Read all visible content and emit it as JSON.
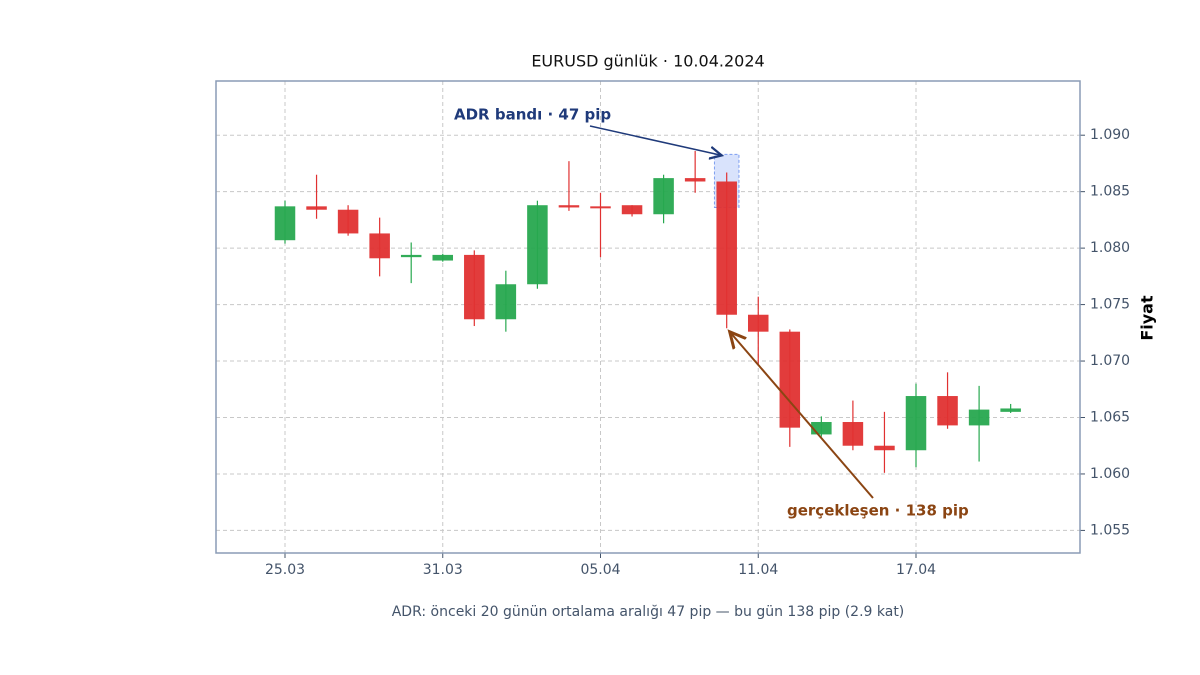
{
  "chart_data": {
    "type": "candlestick",
    "title": "EURUSD günlük · 10.04.2024",
    "y_label": "Fiyat",
    "caption": "ADR: önceki 20 günün ortalama aralığı 47 pip — bu gün 138 pip (2.9 kat)",
    "categories": [
      "25.03",
      null,
      null,
      null,
      null,
      "31.03",
      null,
      null,
      null,
      null,
      "05.04",
      null,
      null,
      null,
      null,
      "11.04",
      null,
      null,
      null,
      null,
      "17.04",
      null,
      null,
      null
    ],
    "open": [
      1.0807,
      1.0837,
      1.0834,
      1.0813,
      1.0792,
      1.0789,
      1.0794,
      1.0737,
      1.0768,
      1.0838,
      1.0837,
      1.0838,
      1.083,
      1.0862,
      1.0859,
      1.0741,
      1.0726,
      1.0635,
      1.0646,
      1.0625,
      1.0621,
      1.0669,
      1.0643,
      1.0655
    ],
    "high": [
      1.0842,
      1.0865,
      1.0838,
      1.0827,
      1.0805,
      1.0795,
      1.0798,
      1.078,
      1.0842,
      1.0877,
      1.0849,
      1.0838,
      1.0865,
      1.0886,
      1.0867,
      1.0757,
      1.0728,
      1.0651,
      1.0665,
      1.0655,
      1.068,
      1.069,
      1.0678,
      1.0662
    ],
    "low": [
      1.0804,
      1.0826,
      1.0811,
      1.0775,
      1.0769,
      1.0788,
      1.0731,
      1.0726,
      1.0764,
      1.0833,
      1.0792,
      1.0828,
      1.0822,
      1.0849,
      1.0729,
      1.0696,
      1.0624,
      1.0633,
      1.0621,
      1.0601,
      1.0606,
      1.064,
      1.0611,
      1.0654
    ],
    "close": [
      1.0837,
      1.0834,
      1.0813,
      1.0791,
      1.0794,
      1.0794,
      1.0737,
      1.0768,
      1.0838,
      1.0836,
      1.0836,
      1.083,
      1.0862,
      1.0859,
      1.0741,
      1.0726,
      1.0641,
      1.0646,
      1.0625,
      1.0621,
      1.0669,
      1.0643,
      1.0657,
      1.0658
    ],
    "up_color": "#27a84f",
    "down_color": "#e03131",
    "ylim": [
      1.053,
      1.0948
    ],
    "yticks": [
      1.055,
      {
        "value": 1.06,
        "label": "1.060"
      },
      1.065,
      {
        "value": 1.07,
        "label": "1.070"
      },
      1.075,
      {
        "value": 1.08,
        "label": "1.080"
      },
      1.085,
      {
        "value": 1.09,
        "label": "1.090"
      }
    ],
    "grid": true,
    "adr_band": {
      "index": 14,
      "low": 1.0836,
      "high": 1.0883,
      "color": "#cfdcfb",
      "label": "ADR bandı · 47 pip",
      "label_color": "#1f3a7a"
    },
    "realized": {
      "index": 14,
      "label": "gerçekleşen · 138 pip",
      "label_color": "#8b4513"
    }
  }
}
